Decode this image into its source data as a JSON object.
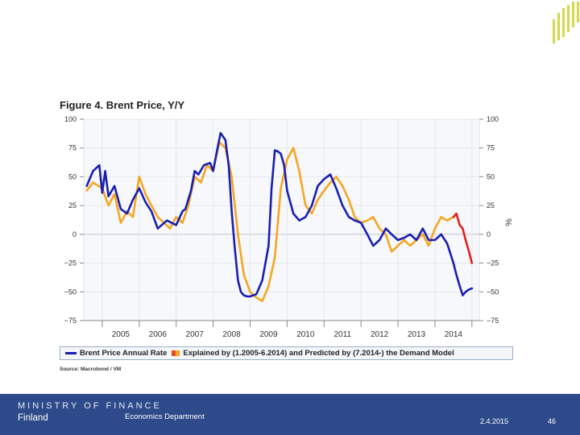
{
  "figure_title": "Figure 4. Brent Price, Y/Y",
  "source": "Source: Macrobond / VM",
  "legend": {
    "brent": "Brent Price Annual Rate",
    "model": "Explained by (1.2005-6.2014) and Predicted by (7.2014-) the Demand Model"
  },
  "footer": {
    "ministry": "MINISTRY OF FINANCE",
    "country": "Finland",
    "department": "Economics Department",
    "date": "2.4.2015",
    "page": "46"
  },
  "colors": {
    "brent": "#1a1fb0",
    "explained": "#f5a623",
    "predicted": "#e02020",
    "footer_bg": "#2e4a8a",
    "plot_bg": "#f7f8fb"
  },
  "chart_data": {
    "type": "line",
    "title": "Figure 4. Brent Price, Y/Y",
    "ylabel_right": "%",
    "ylim": [
      -75,
      100
    ],
    "yticks": [
      100,
      75,
      50,
      25,
      0,
      -25,
      -50,
      -75
    ],
    "ytick_labels": [
      "100",
      "75",
      "50",
      "25",
      "0",
      "−25",
      "−50",
      "−75"
    ],
    "xlim": [
      2004.5,
      2015.2
    ],
    "xticks": [
      "2005",
      "2006",
      "2007",
      "2008",
      "2009",
      "2010",
      "2011",
      "2012",
      "2013",
      "2014"
    ],
    "series": [
      {
        "name": "Brent Price Annual Rate",
        "color": "#1a1fb0",
        "x": [
          2004.58,
          2004.75,
          2004.92,
          2005.0,
          2005.08,
          2005.17,
          2005.33,
          2005.5,
          2005.67,
          2005.83,
          2006.0,
          2006.17,
          2006.33,
          2006.5,
          2006.75,
          2007.0,
          2007.17,
          2007.25,
          2007.4,
          2007.5,
          2007.6,
          2007.75,
          2007.92,
          2008.0,
          2008.1,
          2008.2,
          2008.33,
          2008.42,
          2008.5,
          2008.58,
          2008.67,
          2008.75,
          2008.83,
          2008.92,
          2009.0,
          2009.17,
          2009.33,
          2009.5,
          2009.58,
          2009.67,
          2009.75,
          2009.83,
          2009.92,
          2010.0,
          2010.17,
          2010.33,
          2010.5,
          2010.67,
          2010.83,
          2011.0,
          2011.17,
          2011.33,
          2011.5,
          2011.67,
          2011.83,
          2012.0,
          2012.17,
          2012.33,
          2012.5,
          2012.67,
          2012.83,
          2013.0,
          2013.17,
          2013.33,
          2013.5,
          2013.67,
          2013.83,
          2014.0,
          2014.17,
          2014.33,
          2014.5,
          2014.58,
          2014.67,
          2014.75,
          2014.83,
          2014.92,
          2015.0
        ],
        "y": [
          42,
          55,
          60,
          36,
          55,
          33,
          42,
          22,
          18,
          30,
          40,
          28,
          20,
          5,
          12,
          8,
          20,
          22,
          38,
          55,
          52,
          60,
          62,
          55,
          72,
          88,
          82,
          60,
          20,
          -10,
          -40,
          -50,
          -53,
          -54,
          -54,
          -52,
          -40,
          -10,
          40,
          73,
          72,
          70,
          60,
          38,
          18,
          12,
          15,
          25,
          42,
          48,
          52,
          40,
          25,
          15,
          12,
          10,
          0,
          -10,
          -5,
          5,
          0,
          -5,
          -3,
          0,
          -5,
          5,
          -5,
          -5,
          0,
          -8,
          -25,
          -35,
          -45,
          -53,
          -50,
          -48,
          -47
        ]
      },
      {
        "name": "Explained by (1.2005-6.2014) the Demand Model",
        "color": "#f5a623",
        "x": [
          2004.58,
          2004.75,
          2005.0,
          2005.17,
          2005.33,
          2005.5,
          2005.67,
          2005.83,
          2006.0,
          2006.17,
          2006.33,
          2006.5,
          2006.67,
          2006.83,
          2007.0,
          2007.17,
          2007.33,
          2007.5,
          2007.67,
          2007.83,
          2008.0,
          2008.17,
          2008.33,
          2008.5,
          2008.67,
          2008.83,
          2009.0,
          2009.17,
          2009.33,
          2009.5,
          2009.67,
          2009.83,
          2010.0,
          2010.17,
          2010.33,
          2010.5,
          2010.67,
          2010.83,
          2011.0,
          2011.17,
          2011.33,
          2011.5,
          2011.67,
          2011.83,
          2012.0,
          2012.17,
          2012.33,
          2012.5,
          2012.67,
          2012.83,
          2013.0,
          2013.17,
          2013.33,
          2013.5,
          2013.67,
          2013.83,
          2014.0,
          2014.17,
          2014.33,
          2014.5
        ],
        "y": [
          38,
          45,
          40,
          25,
          35,
          10,
          20,
          15,
          50,
          35,
          25,
          15,
          10,
          5,
          15,
          10,
          25,
          50,
          45,
          60,
          55,
          80,
          75,
          50,
          0,
          -35,
          -50,
          -55,
          -58,
          -45,
          -20,
          40,
          65,
          75,
          55,
          25,
          18,
          30,
          38,
          45,
          50,
          42,
          30,
          15,
          10,
          12,
          15,
          5,
          0,
          -15,
          -10,
          -5,
          -10,
          -5,
          0,
          -10,
          5,
          15,
          12,
          15
        ]
      },
      {
        "name": "Predicted by (7.2014-) the Demand Model",
        "color": "#e02020",
        "x": [
          2014.5,
          2014.58,
          2014.67,
          2014.75,
          2014.83,
          2014.92,
          2015.0
        ],
        "y": [
          15,
          18,
          8,
          5,
          -5,
          -15,
          -25
        ]
      }
    ]
  }
}
